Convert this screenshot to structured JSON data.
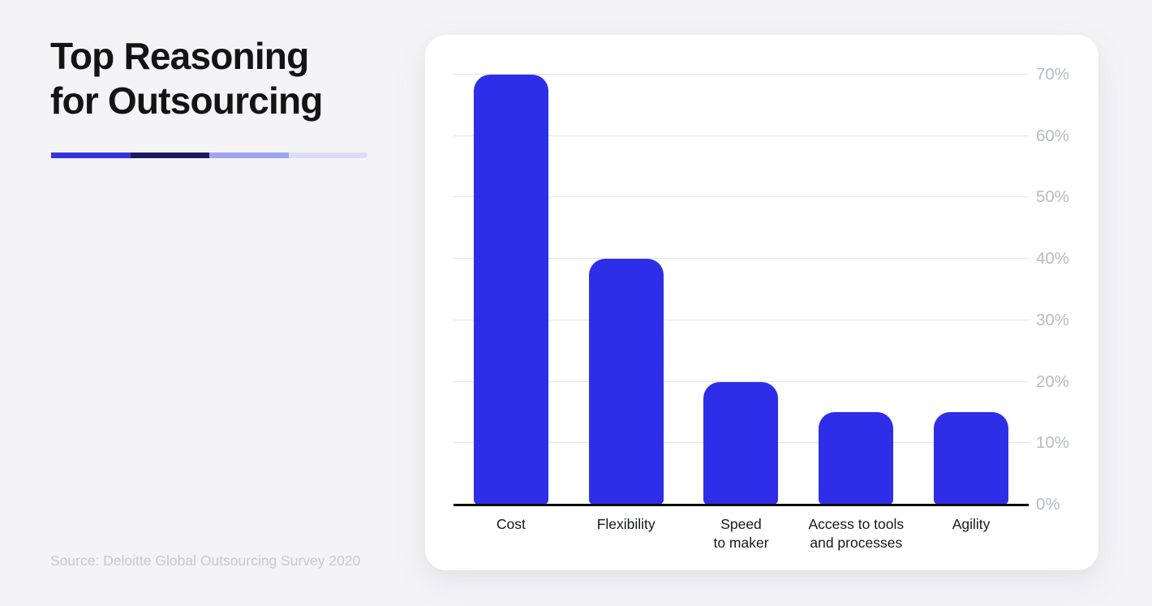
{
  "page": {
    "title_line1": "Top Reasoning",
    "title_line2": "for Outsourcing",
    "source": "Source: Deloitte Global Outsourcing Survey 2020"
  },
  "theme": {
    "page_bg": "#f4f4f6",
    "card_bg": "#ffffff",
    "bar_color": "#2e2ee8",
    "gridline_color": "#e4e4e8",
    "axis_line_color": "#0a0a0a",
    "y_label_color": "#b6bbc4",
    "x_label_color": "#16181d",
    "title_color": "#141414",
    "source_color": "#c9c9cd",
    "accent_segments": [
      "#3431e1",
      "#1e1a5f",
      "#9fa5ef",
      "#dbdcf7"
    ]
  },
  "chart_data": {
    "type": "bar",
    "title": "Top Reasoning for Outsourcing",
    "categories": [
      "Cost",
      "Flexibility",
      "Speed to maker",
      "Access to tools and processes",
      "Agility"
    ],
    "category_lines": [
      [
        "Cost"
      ],
      [
        "Flexibility"
      ],
      [
        "Speed",
        "to maker"
      ],
      [
        "Access to tools",
        "and processes"
      ],
      [
        "Agility"
      ]
    ],
    "values": [
      70,
      40,
      20,
      15,
      15
    ],
    "unit": "%",
    "xlabel": "",
    "ylabel": "",
    "ylim": [
      0,
      70
    ],
    "ytick_step": 10,
    "ytick_labels": [
      "0%",
      "10%",
      "20%",
      "30%",
      "40%",
      "50%",
      "60%",
      "70%"
    ],
    "y_axis_side": "right",
    "grid": true,
    "legend": false,
    "bar_color": "#2e2ee8"
  }
}
